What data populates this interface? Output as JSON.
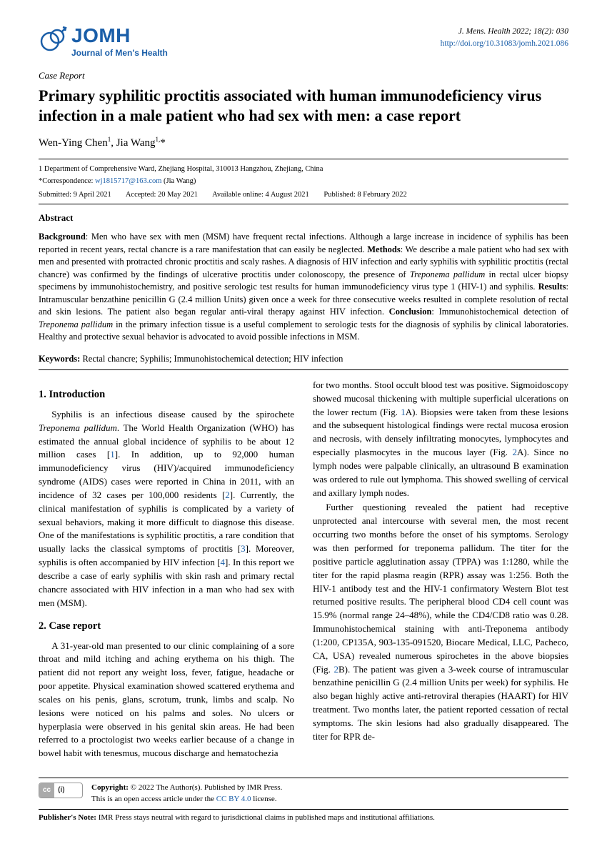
{
  "colors": {
    "brand": "#1a5ea8",
    "text": "#000000",
    "background": "#ffffff",
    "rule": "#000000"
  },
  "journal": {
    "logo_abbr": "JOMH",
    "logo_sub": "Journal of Men's Health",
    "citation": "J. Mens. Health 2022; 18(2): 030",
    "doi": "http://doi.org/10.31083/jomh.2021.086"
  },
  "article": {
    "type": "Case Report",
    "title": "Primary syphilitic proctitis associated with human immunodeficiency virus infection in a male patient who had sex with men: a case report",
    "authors_html": "Wen-Ying Chen<sup>1</sup>, Jia Wang<sup>1,</sup>*"
  },
  "affiliation": "1 Department of Comprehensive Ward, Zhejiang Hospital, 310013 Hangzhou, Zhejiang, China",
  "correspondence_prefix": "*Correspondence: ",
  "correspondence_email": "wj1815717@163.com",
  "correspondence_name": " (Jia Wang)",
  "dates": {
    "submitted": "Submitted: 9 April 2021",
    "accepted": "Accepted: 20 May 2021",
    "online": "Available online: 4 August 2021",
    "published": "Published: 8 February 2022"
  },
  "abstract_heading": "Abstract",
  "abstract_html": "<b>Background</b>: Men who have sex with men (MSM) have frequent rectal infections. Although a large increase in incidence of syphilis has been reported in recent years, rectal chancre is a rare manifestation that can easily be neglected. <b>Methods</b>: We describe a male patient who had sex with men and presented with protracted chronic proctitis and scaly rashes. A diagnosis of HIV infection and early syphilis with syphilitic proctitis (rectal chancre) was confirmed by the findings of ulcerative proctitis under colonoscopy, the presence of <i>Treponema pallidum</i> in rectal ulcer biopsy specimens by immunohistochemistry, and positive serologic test results for human immunodeficiency virus type 1 (HIV-1) and syphilis. <b>Results</b>: Intramuscular benzathine penicillin G (2.4 million Units) given once a week for three consecutive weeks resulted in complete resolution of rectal and skin lesions. The patient also began regular anti-viral therapy against HIV infection. <b>Conclusion</b>: Immunohistochemical detection of <i>Treponema pallidum</i> in the primary infection tissue is a useful complement to serologic tests for the diagnosis of syphilis by clinical laboratories. Healthy and protective sexual behavior is advocated to avoid possible infections in MSM.",
  "keywords_label": "Keywords:",
  "keywords": " Rectal chancre; Syphilis; Immunohistochemical detection; HIV infection",
  "sections": {
    "intro_heading": "1. Introduction",
    "intro_html": "Syphilis is an infectious disease caused by the spirochete <i>Treponema pallidum</i>. The World Health Organization (WHO) has estimated the annual global incidence of syphilis to be about 12 million cases [<span class='ref'>1</span>]. In addition, up to 92,000 human immunodeficiency virus (HIV)/acquired immunodeficiency syndrome (AIDS) cases were reported in China in 2011, with an incidence of 32 cases per 100,000 residents [<span class='ref'>2</span>]. Currently, the clinical manifestation of syphilis is complicated by a variety of sexual behaviors, making it more difficult to diagnose this disease. One of the manifestations is syphilitic proctitis, a rare condition that usually lacks the classical symptoms of proctitis [<span class='ref'>3</span>]. Moreover, syphilis is often accompanied by HIV infection [<span class='ref'>4</span>]. In this report we describe a case of early syphilis with skin rash and primary rectal chancre associated with HIV infection in a man who had sex with men (MSM).",
    "case_heading": "2. Case report",
    "case_p1": "A 31-year-old man presented to our clinic complaining of a sore throat and mild itching and aching erythema on his thigh. The patient did not report any weight loss, fever, fatigue, headache or poor appetite. Physical examination showed scattered erythema and scales on his penis, glans, scrotum, trunk, limbs and scalp. No lesions were noticed on his palms and soles. No ulcers or hyperplasia were observed in his genital skin areas. He had been referred to a proctologist two weeks earlier because of a change in bowel habit with tenesmus, mucous discharge and hematochezia",
    "col2_p1_html": "for two months. Stool occult blood test was positive. Sigmoidoscopy showed mucosal thickening with multiple superficial ulcerations on the lower rectum (Fig. <span class='ref'>1</span>A). Biopsies were taken from these lesions and the subsequent histological findings were rectal mucosa erosion and necrosis, with densely infiltrating monocytes, lymphocytes and especially plasmocytes in the mucous layer (Fig. <span class='ref'>2</span>A). Since no lymph nodes were palpable clinically, an ultrasound B examination was ordered to rule out lymphoma. This showed swelling of cervical and axillary lymph nodes.",
    "col2_p2_html": "Further questioning revealed the patient had receptive unprotected anal intercourse with several men, the most recent occurring two months before the onset of his symptoms. Serology was then performed for treponema pallidum. The titer for the positive particle agglutination assay (TPPA) was 1:1280, while the titer for the rapid plasma reagin (RPR) assay was 1:256. Both the HIV-1 antibody test and the HIV-1 confirmatory Western Blot test returned positive results. The peripheral blood CD4 cell count was 15.9% (normal range 24–48%), while the CD4/CD8 ratio was 0.28. Immunohistochemical staining with anti-Treponema antibody (1:200, CP135A, 903-135-091520, Biocare Medical, LLC, Pacheco, CA, USA) revealed numerous spirochetes in the above biopsies (Fig. <span class='ref'>2</span>B). The patient was given a 3-week course of intramuscular benzathine penicillin G (2.4 million Units per week) for syphilis. He also began highly active anti-retroviral therapies (HAART) for HIV treatment. Two months later, the patient reported cessation of rectal symptoms. The skin lesions had also gradually disappeared. The titer for RPR de-"
  },
  "footer": {
    "cc_left": "cc",
    "cc_right": "(i)",
    "copyright_html": "<b>Copyright:</b> © 2022 The Author(s). Published by IMR Press.<br>This is an open access article under the <span class='lic'>CC BY 4.0</span> license.",
    "pubnote_html": "<b>Publisher's Note:</b> IMR Press stays neutral with regard to jurisdictional claims in published maps and institutional affiliations."
  }
}
